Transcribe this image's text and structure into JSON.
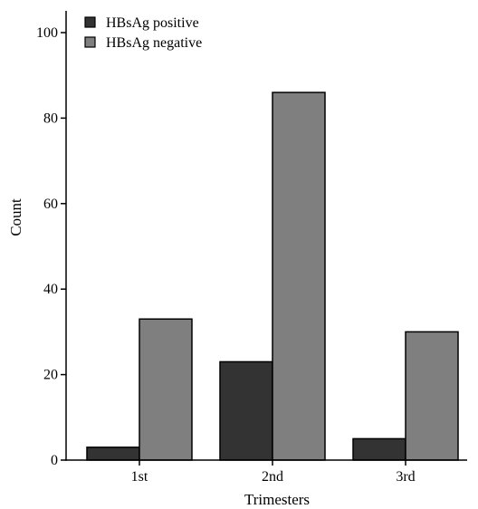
{
  "chart_data": {
    "type": "bar",
    "title": "",
    "xlabel": "Trimesters",
    "ylabel": "Count",
    "categories": [
      "1st",
      "2nd",
      "3rd"
    ],
    "series": [
      {
        "name": "HBsAg positive",
        "values": [
          3,
          23,
          5
        ],
        "color": "#333333"
      },
      {
        "name": "HBsAg negative",
        "values": [
          33,
          86,
          30
        ],
        "color": "#7f7f7f"
      }
    ],
    "ylim": [
      0,
      105
    ],
    "yticks": [
      0,
      20,
      40,
      60,
      80,
      100
    ],
    "ytick_labels": [
      "0",
      "20",
      "40",
      "60",
      "80",
      "100"
    ],
    "grid": false,
    "legend_position": "top-left"
  }
}
